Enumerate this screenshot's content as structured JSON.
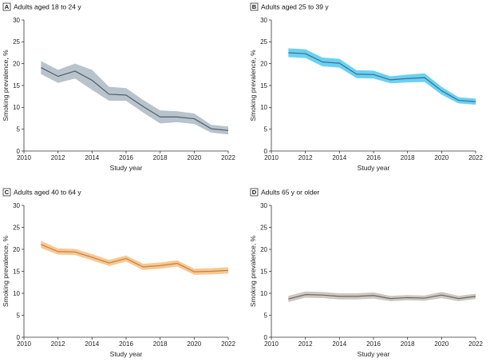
{
  "chart_data": [
    {
      "type": "line",
      "panel_letter": "A",
      "title": "Adults aged 18 to 24 y",
      "xlabel": "Study year",
      "ylabel": "Smoking prevalence, %",
      "xlim": [
        2010,
        2022
      ],
      "ylim": [
        0,
        30
      ],
      "xticks": [
        2010,
        2012,
        2014,
        2016,
        2018,
        2020,
        2022
      ],
      "yticks": [
        0,
        5,
        10,
        15,
        20,
        25,
        30
      ],
      "line_color": "#4d5f6f",
      "band_color": "#b8c3cc",
      "x": [
        2011,
        2012,
        2013,
        2014,
        2015,
        2016,
        2017,
        2018,
        2019,
        2020,
        2021,
        2022
      ],
      "series": [
        {
          "values": [
            19.1,
            17.1,
            18.3,
            16.2,
            13.0,
            12.8,
            10.2,
            7.8,
            7.8,
            7.4,
            5.1,
            4.7
          ],
          "lower": [
            17.6,
            15.6,
            16.6,
            14.0,
            11.5,
            11.5,
            8.8,
            6.3,
            6.6,
            6.2,
            4.2,
            3.8
          ],
          "upper": [
            20.6,
            18.6,
            20.0,
            18.6,
            14.7,
            14.4,
            11.7,
            9.3,
            9.1,
            8.6,
            6.0,
            5.6
          ]
        }
      ]
    },
    {
      "type": "line",
      "panel_letter": "B",
      "title": "Adults aged 25 to 39 y",
      "xlabel": "Study year",
      "ylabel": "Smoking prevalence, %",
      "xlim": [
        2010,
        2022
      ],
      "ylim": [
        0,
        30
      ],
      "xticks": [
        2010,
        2012,
        2014,
        2016,
        2018,
        2020,
        2022
      ],
      "yticks": [
        0,
        5,
        10,
        15,
        20,
        25,
        30
      ],
      "line_color": "#3b6f8a",
      "band_color": "#6ad1f2",
      "x": [
        2011,
        2012,
        2013,
        2014,
        2015,
        2016,
        2017,
        2018,
        2019,
        2020,
        2021,
        2022
      ],
      "series": [
        {
          "values": [
            22.5,
            22.3,
            20.4,
            20.1,
            17.6,
            17.5,
            16.3,
            16.6,
            16.8,
            13.8,
            11.6,
            11.3
          ],
          "lower": [
            21.5,
            21.3,
            19.4,
            19.1,
            16.7,
            16.6,
            15.5,
            15.7,
            15.8,
            12.9,
            10.9,
            10.6
          ],
          "upper": [
            23.5,
            23.3,
            21.4,
            21.1,
            18.5,
            18.4,
            17.1,
            17.5,
            17.8,
            14.7,
            12.3,
            12.0
          ]
        }
      ]
    },
    {
      "type": "line",
      "panel_letter": "C",
      "title": "Adults aged 40 to 64 y",
      "xlabel": "Study year",
      "ylabel": "Smoking prevalence, %",
      "xlim": [
        2010,
        2022
      ],
      "ylim": [
        0,
        30
      ],
      "xticks": [
        2010,
        2012,
        2014,
        2016,
        2018,
        2020,
        2022
      ],
      "yticks": [
        0,
        5,
        10,
        15,
        20,
        25,
        30
      ],
      "line_color": "#c0804a",
      "band_color": "#f8c890",
      "x": [
        2011,
        2012,
        2013,
        2014,
        2015,
        2016,
        2017,
        2018,
        2019,
        2020,
        2021,
        2022
      ],
      "series": [
        {
          "values": [
            21.1,
            19.5,
            19.4,
            18.2,
            16.9,
            17.9,
            16.0,
            16.3,
            16.8,
            14.9,
            15.0,
            15.2
          ],
          "lower": [
            20.3,
            18.8,
            18.7,
            17.5,
            16.2,
            17.2,
            15.3,
            15.6,
            16.1,
            14.2,
            14.3,
            14.5
          ],
          "upper": [
            21.9,
            20.2,
            20.1,
            18.9,
            17.6,
            18.6,
            16.7,
            17.0,
            17.5,
            15.6,
            15.7,
            15.9
          ]
        }
      ]
    },
    {
      "type": "line",
      "panel_letter": "D",
      "title": "Adults 65 y or older",
      "xlabel": "Study year",
      "ylabel": "Smoking prevalence, %",
      "xlim": [
        2010,
        2022
      ],
      "ylim": [
        0,
        30
      ],
      "xticks": [
        2010,
        2012,
        2014,
        2016,
        2018,
        2020,
        2022
      ],
      "yticks": [
        0,
        5,
        10,
        15,
        20,
        25,
        30
      ],
      "line_color": "#6e665e",
      "band_color": "#cdc7c1",
      "x": [
        2011,
        2012,
        2013,
        2014,
        2015,
        2016,
        2017,
        2018,
        2019,
        2020,
        2021,
        2022
      ],
      "series": [
        {
          "values": [
            8.7,
            9.7,
            9.6,
            9.3,
            9.3,
            9.5,
            8.8,
            9.0,
            8.9,
            9.6,
            8.8,
            9.3
          ],
          "lower": [
            8.0,
            9.0,
            8.9,
            8.6,
            8.6,
            8.8,
            8.2,
            8.4,
            8.3,
            8.9,
            8.2,
            8.7
          ],
          "upper": [
            9.4,
            10.4,
            10.3,
            10.0,
            10.0,
            10.2,
            9.4,
            9.6,
            9.5,
            10.3,
            9.4,
            9.9
          ]
        }
      ]
    }
  ]
}
